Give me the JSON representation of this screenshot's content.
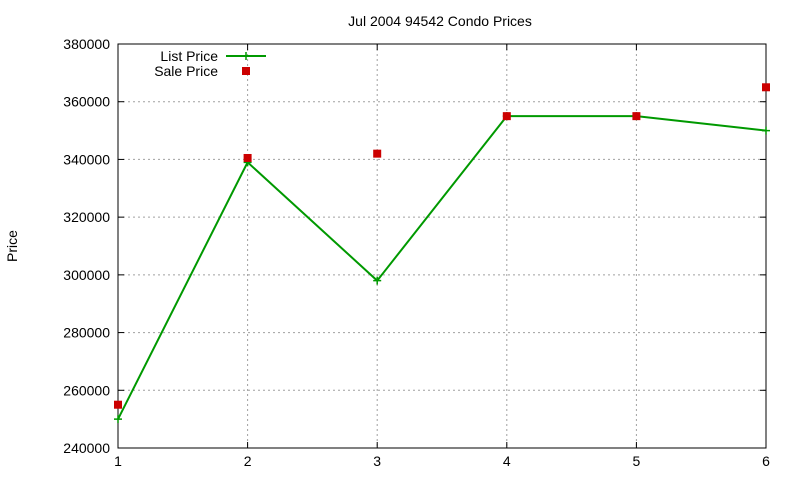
{
  "chart_data": {
    "type": "line",
    "title": "Jul 2004 94542 Condo Prices",
    "xlabel": "",
    "ylabel": "Price",
    "xlim": [
      1,
      6
    ],
    "ylim": [
      240000,
      380000
    ],
    "xticks": [
      "1",
      "2",
      "3",
      "4",
      "5",
      "6"
    ],
    "yticks": [
      "240000",
      "260000",
      "280000",
      "300000",
      "320000",
      "340000",
      "360000",
      "380000"
    ],
    "grid": true,
    "legend_position": "top-left",
    "series": [
      {
        "name": "List Price",
        "style": "line-plus",
        "color": "#009900",
        "x": [
          1,
          2,
          3,
          4,
          5,
          6
        ],
        "y": [
          250000,
          339000,
          298000,
          355000,
          355000,
          350000
        ]
      },
      {
        "name": "Sale Price",
        "style": "square-points",
        "color": "#cc0000",
        "x": [
          1,
          2,
          3,
          4,
          5,
          6
        ],
        "y": [
          255000,
          340500,
          342000,
          355000,
          355000,
          365000
        ]
      }
    ]
  }
}
